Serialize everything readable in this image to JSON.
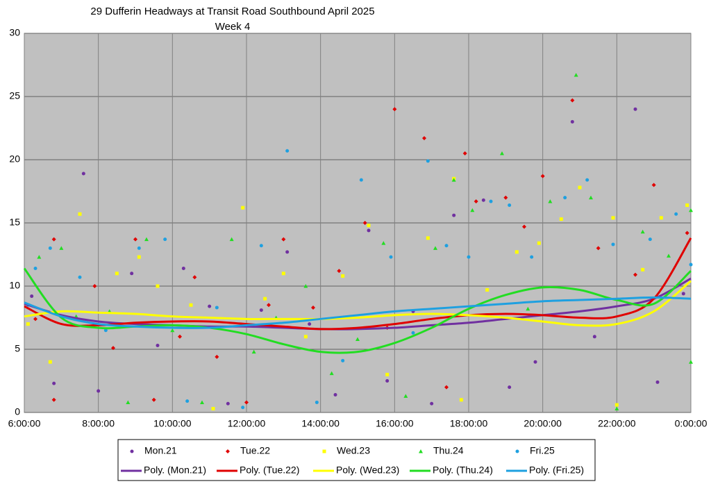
{
  "chart_data": {
    "type": "scatter",
    "title": "29 Dufferin Headways at Transit Road Southbound April 2025",
    "subtitle": "Week 4",
    "xlim": [
      6,
      24
    ],
    "xticks": [
      {
        "value": 6,
        "label": "6:00:00"
      },
      {
        "value": 8,
        "label": "8:00:00"
      },
      {
        "value": 10,
        "label": "10:00:00"
      },
      {
        "value": 12,
        "label": "12:00:00"
      },
      {
        "value": 14,
        "label": "14:00:00"
      },
      {
        "value": 16,
        "label": "16:00:00"
      },
      {
        "value": 18,
        "label": "18:00:00"
      },
      {
        "value": 20,
        "label": "20:00:00"
      },
      {
        "value": 22,
        "label": "22:00:00"
      },
      {
        "value": 24,
        "label": "0:00:00"
      }
    ],
    "ylim": [
      0,
      30
    ],
    "yticks": [
      0,
      5,
      10,
      15,
      20,
      25,
      30
    ],
    "grid": true,
    "legend": "bottom",
    "series": [
      {
        "name": "Mon.21",
        "color": "#7030a0",
        "marker": "circle",
        "x": [
          6.2,
          6.8,
          7.6,
          8.0,
          8.9,
          9.6,
          10.3,
          11.0,
          11.5,
          12.4,
          13.1,
          13.7,
          14.4,
          15.3,
          15.8,
          16.5,
          17.0,
          17.6,
          18.4,
          19.1,
          19.8,
          20.8,
          21.4,
          22.5,
          23.1,
          23.8
        ],
        "values": [
          9.2,
          2.3,
          18.9,
          1.7,
          11.0,
          5.3,
          11.4,
          8.4,
          0.7,
          8.1,
          12.7,
          7.0,
          1.4,
          14.4,
          2.5,
          8.0,
          0.7,
          15.6,
          16.8,
          2.0,
          4.0,
          23.0,
          6.0,
          24.0,
          2.4,
          9.4
        ]
      },
      {
        "name": "Tue.22",
        "color": "#e00000",
        "marker": "diamond",
        "x": [
          6.3,
          6.8,
          6.8,
          7.9,
          8.4,
          9.0,
          9.5,
          10.2,
          10.6,
          11.2,
          12.0,
          12.6,
          13.0,
          13.8,
          14.5,
          15.2,
          15.8,
          16.0,
          16.8,
          17.4,
          17.9,
          18.2,
          19.0,
          19.5,
          20.0,
          20.8,
          21.5,
          22.5,
          23.0,
          23.9
        ],
        "values": [
          7.4,
          13.7,
          1.0,
          10.0,
          5.1,
          13.7,
          1.0,
          6.0,
          10.7,
          4.4,
          0.8,
          8.5,
          13.7,
          8.3,
          11.2,
          15.0,
          6.7,
          24.0,
          21.7,
          2.0,
          20.5,
          16.7,
          17.0,
          14.7,
          18.7,
          24.7,
          13.0,
          10.9,
          18.0,
          14.2
        ]
      },
      {
        "name": "Wed.23",
        "color": "#ffff00",
        "marker": "square",
        "x": [
          6.1,
          6.7,
          7.5,
          8.5,
          9.1,
          9.6,
          10.5,
          11.1,
          11.9,
          12.5,
          13.0,
          13.6,
          14.6,
          15.3,
          15.8,
          16.9,
          17.6,
          17.8,
          18.5,
          19.3,
          19.9,
          20.5,
          21.0,
          21.9,
          22.0,
          22.7,
          23.2,
          23.9
        ],
        "values": [
          7.0,
          4.0,
          15.7,
          11.0,
          12.3,
          10.0,
          8.5,
          0.3,
          16.2,
          9.0,
          11.0,
          6.0,
          10.8,
          14.8,
          3.0,
          13.8,
          18.5,
          1.0,
          9.7,
          12.7,
          13.4,
          15.3,
          17.8,
          15.4,
          0.6,
          11.3,
          15.4,
          16.4
        ]
      },
      {
        "name": "Thu.24",
        "color": "#22dd22",
        "marker": "triangle",
        "x": [
          6.4,
          7.0,
          7.4,
          8.3,
          8.8,
          9.3,
          10.0,
          10.8,
          11.6,
          12.2,
          12.8,
          13.6,
          14.3,
          15.0,
          15.7,
          16.3,
          17.1,
          17.6,
          18.1,
          18.9,
          19.6,
          20.2,
          20.9,
          21.3,
          22.0,
          22.7,
          23.4,
          24.0,
          24.0
        ],
        "values": [
          12.3,
          13.0,
          7.6,
          8.0,
          0.8,
          13.7,
          6.5,
          0.8,
          13.7,
          4.8,
          7.5,
          10.0,
          3.1,
          5.8,
          13.4,
          1.3,
          13.0,
          18.4,
          16.0,
          20.5,
          8.2,
          16.7,
          26.7,
          17.0,
          0.3,
          14.3,
          12.4,
          16.0,
          4.0
        ]
      },
      {
        "name": "Fri.25",
        "color": "#1ea0e0",
        "marker": "circle",
        "x": [
          6.1,
          6.3,
          6.7,
          7.5,
          8.2,
          9.1,
          9.8,
          10.4,
          11.2,
          11.9,
          12.4,
          13.1,
          13.9,
          14.6,
          15.1,
          15.9,
          16.5,
          16.9,
          17.4,
          18.0,
          18.6,
          19.1,
          19.7,
          20.6,
          21.2,
          21.9,
          22.9,
          23.6,
          24.0
        ],
        "values": [
          8.5,
          11.4,
          13.0,
          10.7,
          6.5,
          13.0,
          13.7,
          0.9,
          8.3,
          0.4,
          13.2,
          20.7,
          0.8,
          4.1,
          18.4,
          12.3,
          6.3,
          19.9,
          13.2,
          12.3,
          16.7,
          16.4,
          12.3,
          17.0,
          18.4,
          13.3,
          13.7,
          15.7,
          11.7
        ]
      }
    ],
    "trend_x": [
      6,
      7,
      8,
      9,
      10,
      11,
      12,
      13,
      14,
      15,
      16,
      17,
      18,
      19,
      20,
      21,
      22,
      23,
      24
    ],
    "trends": [
      {
        "name": "Poly. (Mon.21)",
        "color": "#7030a0",
        "values": [
          8.6,
          7.7,
          7.2,
          7.0,
          6.9,
          6.8,
          6.8,
          6.7,
          6.6,
          6.6,
          6.7,
          6.9,
          7.1,
          7.4,
          7.7,
          8.0,
          8.4,
          9.0,
          10.6
        ]
      },
      {
        "name": "Poly. (Tue.22)",
        "color": "#e00000",
        "values": [
          8.4,
          7.0,
          6.9,
          7.1,
          7.2,
          7.2,
          7.0,
          6.8,
          6.6,
          6.7,
          7.0,
          7.4,
          7.7,
          7.8,
          7.7,
          7.5,
          7.6,
          9.0,
          13.8
        ]
      },
      {
        "name": "Poly. (Wed.23)",
        "color": "#ffff00",
        "values": [
          7.6,
          8.0,
          7.9,
          7.8,
          7.6,
          7.5,
          7.4,
          7.4,
          7.4,
          7.5,
          7.7,
          7.8,
          7.7,
          7.5,
          7.2,
          6.9,
          7.0,
          8.0,
          10.4
        ]
      },
      {
        "name": "Poly. (Thu.24)",
        "color": "#22dd22",
        "values": [
          11.4,
          7.5,
          6.7,
          6.8,
          6.9,
          6.7,
          6.2,
          5.4,
          4.8,
          4.8,
          5.5,
          6.7,
          8.2,
          9.3,
          9.9,
          9.7,
          8.9,
          8.6,
          11.2
        ]
      },
      {
        "name": "Poly. (Fri.25)",
        "color": "#1ea0e0",
        "values": [
          8.7,
          7.6,
          7.0,
          6.8,
          6.7,
          6.7,
          6.9,
          7.1,
          7.4,
          7.7,
          8.0,
          8.2,
          8.4,
          8.6,
          8.8,
          8.9,
          9.0,
          9.1,
          9.0
        ]
      }
    ]
  }
}
